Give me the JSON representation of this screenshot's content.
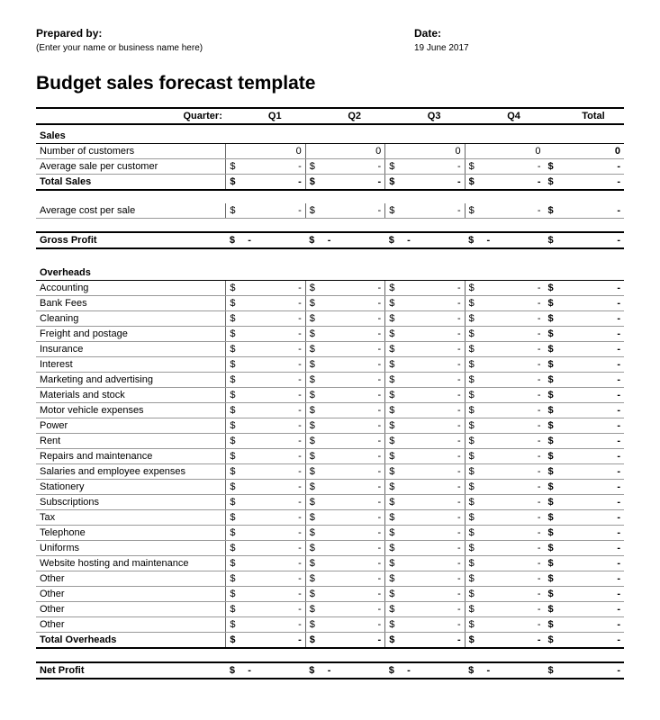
{
  "header": {
    "prepared_by_label": "Prepared by:",
    "prepared_by_value": "(Enter your name or business name here)",
    "date_label": "Date:",
    "date_value": "19 June 2017"
  },
  "title": "Budget sales forecast template",
  "quarter_label": "Quarter:",
  "columns": [
    "Q1",
    "Q2",
    "Q3",
    "Q4"
  ],
  "total_label": "Total",
  "sections": {
    "sales": {
      "title": "Sales",
      "num_customers": {
        "label": "Number of customers",
        "vals": [
          "0",
          "0",
          "0",
          "0"
        ],
        "total": "0"
      },
      "avg_sale": {
        "label": "Average sale per customer",
        "vals": [
          "-",
          "-",
          "-",
          "-"
        ],
        "total": "-"
      },
      "total_sales": {
        "label": "Total Sales",
        "vals": [
          "-",
          "-",
          "-",
          "-"
        ],
        "total": "-"
      },
      "avg_cost": {
        "label": "Average cost per sale",
        "vals": [
          "-",
          "-",
          "-",
          "-"
        ],
        "total": "-"
      },
      "gross_profit": {
        "label": "Gross Profit",
        "vals": [
          "-",
          "-",
          "-",
          "-"
        ],
        "total": "-"
      }
    },
    "overheads": {
      "title": "Overheads",
      "items": [
        "Accounting",
        "Bank Fees",
        "Cleaning",
        "Freight and postage",
        "Insurance",
        "Interest",
        "Marketing and advertising",
        "Materials and stock",
        "Motor vehicle expenses",
        "Power",
        "Rent",
        "Repairs and maintenance",
        "Salaries and employee expenses",
        "Stationery",
        "Subscriptions",
        "Tax",
        "Telephone",
        "Uniforms",
        "Website hosting and maintenance",
        "Other",
        "Other",
        "Other",
        "Other"
      ],
      "row_vals": [
        "-",
        "-",
        "-",
        "-"
      ],
      "row_total": "-",
      "total": {
        "label": "Total Overheads",
        "vals": [
          "-",
          "-",
          "-",
          "-"
        ],
        "total": "-"
      }
    },
    "net_profit": {
      "label": "Net Profit",
      "vals": [
        "-",
        "-",
        "-",
        "-"
      ],
      "total": "-"
    }
  },
  "currency": "$",
  "style": {
    "border_color": "#000000",
    "row_border_color": "#999999",
    "background": "#ffffff",
    "title_fontsize": 21,
    "body_fontsize": 11
  }
}
